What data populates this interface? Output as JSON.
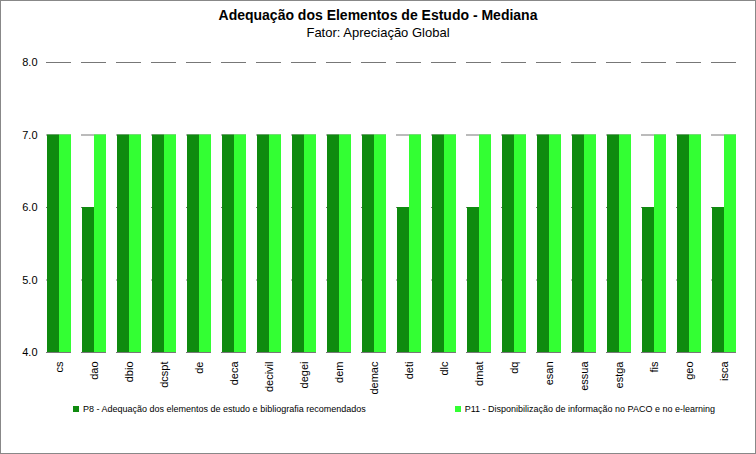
{
  "chart_data": {
    "type": "bar",
    "title": "Adequação dos Elementos de Estudo - Mediana",
    "subtitle": "Fator: Apreciação Global",
    "categories": [
      "cs",
      "dao",
      "dbio",
      "dcspt",
      "de",
      "deca",
      "decivil",
      "degei",
      "dem",
      "demac",
      "deti",
      "dlc",
      "dmat",
      "dq",
      "esan",
      "essua",
      "estga",
      "fis",
      "geo",
      "isca"
    ],
    "series": [
      {
        "name": "P8 - Adequação dos elementos de estudo e bibliografia recomendados",
        "color": "#0f8a0f",
        "values": [
          7,
          6,
          7,
          7,
          7,
          7,
          7,
          7,
          7,
          7,
          6,
          7,
          6,
          7,
          7,
          7,
          7,
          6,
          7,
          6
        ]
      },
      {
        "name": "P11 - Disponibilização de informação no PACO e no e-learning",
        "color": "#33ff33",
        "values": [
          7,
          7,
          7,
          7,
          7,
          7,
          7,
          7,
          7,
          7,
          7,
          7,
          7,
          7,
          7,
          7,
          7,
          7,
          7,
          7
        ]
      }
    ],
    "ylim": [
      4,
      8
    ],
    "yticks": [
      4,
      5,
      6,
      7,
      8
    ],
    "grid": true,
    "legend": "bottom"
  }
}
